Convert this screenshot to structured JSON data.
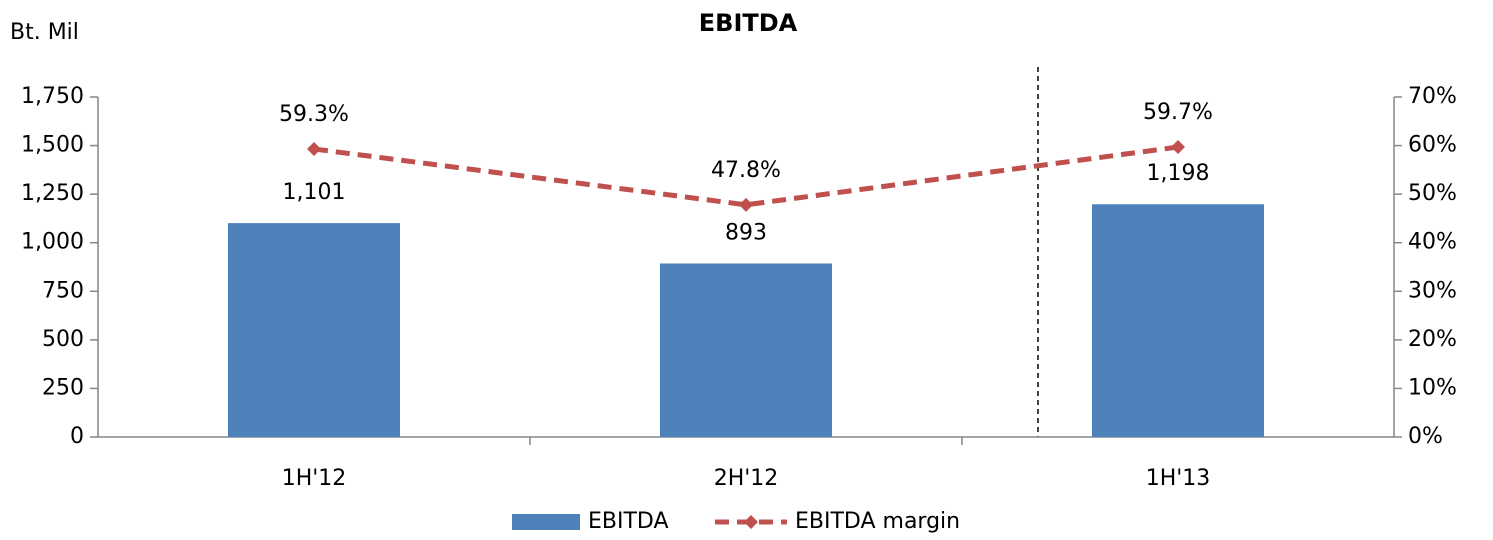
{
  "chart_data": {
    "type": "bar",
    "title": "EBITDA",
    "y_axis_label": "Bt. Mil",
    "categories": [
      "1H'12",
      "2H'12",
      "1H'13"
    ],
    "series": [
      {
        "name": "EBITDA",
        "type": "bar",
        "color": "#4f81bd",
        "values": [
          1101,
          893,
          1198
        ],
        "value_labels": [
          "1,101",
          "893",
          "1,198"
        ]
      },
      {
        "name": "EBITDA margin",
        "type": "line",
        "axis": "y2",
        "color": "#c0504d",
        "values": [
          59.3,
          47.8,
          59.7
        ],
        "value_labels": [
          "59.3%",
          "47.8%",
          "59.7%"
        ]
      }
    ],
    "ylim": [
      0,
      1750
    ],
    "yticks": [
      0,
      250,
      500,
      750,
      {
        "value": 1000,
        "label": "1,000"
      },
      {
        "value": 1250,
        "label": "1,250"
      },
      {
        "value": 1500,
        "label": "1,500"
      },
      {
        "value": 1750,
        "label": "1,750"
      }
    ],
    "y2lim": [
      0,
      70
    ],
    "y2ticks": [
      {
        "value": 0,
        "label": "0%"
      },
      {
        "value": 10,
        "label": "10%"
      },
      {
        "value": 20,
        "label": "20%"
      },
      {
        "value": 30,
        "label": "30%"
      },
      {
        "value": 40,
        "label": "40%"
      },
      {
        "value": 50,
        "label": "50%"
      },
      {
        "value": 60,
        "label": "60%"
      },
      {
        "value": 70,
        "label": "70%"
      }
    ],
    "grid": false,
    "legend": "bottom"
  }
}
